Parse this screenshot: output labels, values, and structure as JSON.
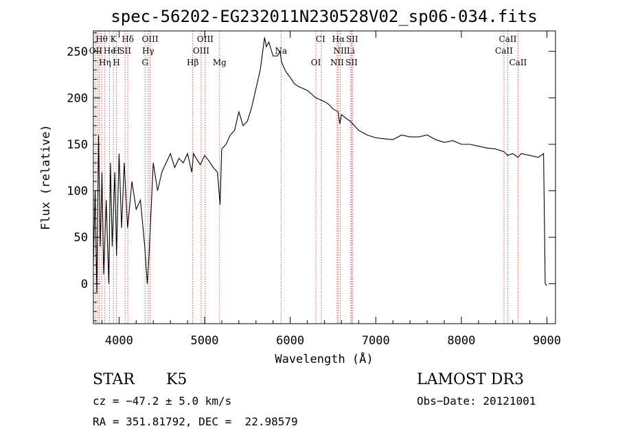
{
  "chart_data": {
    "type": "line",
    "title": "spec-56202-EG232011N230528V02_sp06-034.fits",
    "xlabel": "Wavelength (Å)",
    "ylabel": "Flux (relative)",
    "xlim": [
      3700,
      9100
    ],
    "ylim": [
      -43,
      272
    ],
    "xticks": [
      4000,
      5000,
      6000,
      7000,
      8000,
      9000
    ],
    "yticks": [
      0,
      50,
      100,
      150,
      200,
      250
    ],
    "grid": false,
    "series": [
      {
        "x": [
          3700,
          3720,
          3740,
          3760,
          3780,
          3800,
          3820,
          3850,
          3880,
          3900,
          3920,
          3950,
          3970,
          4000,
          4030,
          4060,
          4100,
          4150,
          4200,
          4250,
          4300,
          4330,
          4350,
          4400,
          4450,
          4500,
          4550,
          4600,
          4650,
          4700,
          4750,
          4800,
          4850,
          4870,
          4900,
          4950,
          5000,
          5050,
          5100,
          5150,
          5180,
          5200,
          5250,
          5300,
          5350,
          5400,
          5450,
          5500,
          5550,
          5600,
          5650,
          5700,
          5720,
          5750,
          5800,
          5850,
          5880,
          5900,
          5950,
          6000,
          6050,
          6100,
          6150,
          6200,
          6250,
          6300,
          6350,
          6400,
          6450,
          6500,
          6560,
          6580,
          6600,
          6650,
          6700,
          6750,
          6800,
          6900,
          7000,
          7100,
          7200,
          7300,
          7400,
          7500,
          7600,
          7700,
          7800,
          7900,
          8000,
          8100,
          8200,
          8300,
          8400,
          8500,
          8540,
          8600,
          8660,
          8700,
          8800,
          8900,
          8960,
          8980,
          9000
        ],
        "y": [
          20,
          100,
          -10,
          160,
          40,
          120,
          10,
          90,
          0,
          130,
          40,
          120,
          30,
          140,
          60,
          130,
          60,
          110,
          80,
          90,
          40,
          0,
          30,
          130,
          100,
          120,
          130,
          140,
          125,
          135,
          130,
          140,
          120,
          140,
          135,
          128,
          138,
          132,
          125,
          120,
          85,
          145,
          150,
          160,
          165,
          185,
          170,
          175,
          190,
          210,
          230,
          265,
          255,
          260,
          245,
          245,
          250,
          238,
          228,
          222,
          215,
          212,
          210,
          208,
          204,
          200,
          198,
          196,
          193,
          188,
          185,
          172,
          182,
          178,
          175,
          170,
          165,
          160,
          157,
          156,
          155,
          160,
          158,
          158,
          160,
          155,
          152,
          154,
          150,
          150,
          148,
          146,
          145,
          142,
          138,
          140,
          136,
          140,
          138,
          136,
          140,
          0,
          -2
        ]
      }
    ],
    "line_labels": [
      {
        "text": "Hθ",
        "x": 3797,
        "row": 0
      },
      {
        "text": "K",
        "x": 3934,
        "row": 0
      },
      {
        "text": "Hδ",
        "x": 4102,
        "row": 0
      },
      {
        "text": "OIII",
        "x": 4363,
        "row": 0
      },
      {
        "text": "OIII",
        "x": 5007,
        "row": 0
      },
      {
        "text": "CI",
        "x": 6355,
        "row": 0
      },
      {
        "text": "Hα",
        "x": 6563,
        "row": 0
      },
      {
        "text": "SII",
        "x": 6723,
        "row": 0
      },
      {
        "text": "CaII",
        "x": 8542,
        "row": 0
      },
      {
        "text": "OII",
        "x": 3727,
        "row": 1
      },
      {
        "text": "He",
        "x": 3889,
        "row": 1
      },
      {
        "text": "H",
        "x": 3970,
        "row": 1
      },
      {
        "text": "SII",
        "x": 4070,
        "row": 1
      },
      {
        "text": "Hγ",
        "x": 4340,
        "row": 1
      },
      {
        "text": "OIII",
        "x": 4959,
        "row": 1
      },
      {
        "text": "Na",
        "x": 5893,
        "row": 1
      },
      {
        "text": "NII",
        "x": 6584,
        "row": 1
      },
      {
        "text": "Li",
        "x": 6708,
        "row": 1
      },
      {
        "text": "CaII",
        "x": 8498,
        "row": 1
      },
      {
        "text": "Hη",
        "x": 3835,
        "row": 2
      },
      {
        "text": "H",
        "x": 3970,
        "row": 2
      },
      {
        "text": "G",
        "x": 4304,
        "row": 2
      },
      {
        "text": "Hβ",
        "x": 4861,
        "row": 2
      },
      {
        "text": "Mg",
        "x": 5175,
        "row": 2
      },
      {
        "text": "OI",
        "x": 6300,
        "row": 2
      },
      {
        "text": "NII",
        "x": 6548,
        "row": 2
      },
      {
        "text": "SII",
        "x": 6717,
        "row": 2
      },
      {
        "text": "CaII",
        "x": 8662,
        "row": 2
      }
    ],
    "vlines": [
      3727,
      3750,
      3770,
      3797,
      3835,
      3889,
      3934,
      3970,
      4070,
      4102,
      4304,
      4340,
      4363,
      4861,
      4959,
      5007,
      5175,
      5893,
      6300,
      6363,
      6548,
      6563,
      6584,
      6708,
      6717,
      6731,
      8498,
      8542,
      8662
    ]
  },
  "info": {
    "class": "STAR",
    "subclass": "K5",
    "survey": "LAMOST DR3",
    "cz": "cz = −47.2 ± 5.0 km/s",
    "obs_date": "Obs−Date: 20121001",
    "radec": "RA = 351.81792, DEC =  22.98579"
  }
}
